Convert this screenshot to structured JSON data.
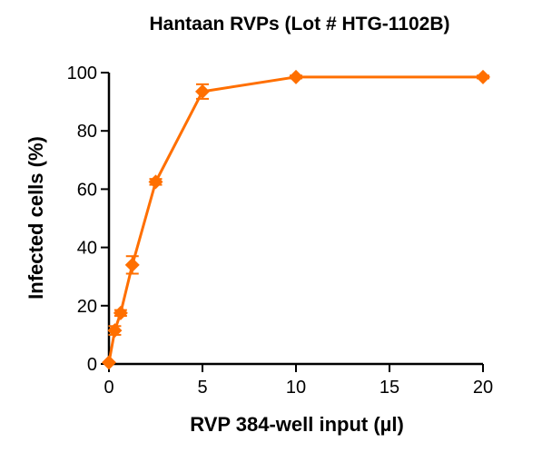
{
  "chart_data": {
    "type": "line",
    "title": "Hantaan RVPs (Lot # HTG-1102B)",
    "xlabel": "RVP 384-well input (µl)",
    "ylabel": "Infected cells (%)",
    "xlim": [
      0,
      20
    ],
    "ylim": [
      0,
      100
    ],
    "xticks": [
      0,
      5,
      10,
      15,
      20
    ],
    "yticks": [
      0,
      20,
      40,
      60,
      80,
      100
    ],
    "xtick_labels": [
      "0",
      "5",
      "10",
      "15",
      "20"
    ],
    "ytick_labels": [
      "0",
      "20",
      "40",
      "60",
      "80",
      "100"
    ],
    "grid": false,
    "series": [
      {
        "color": "#ff6f00",
        "marker": "diamond",
        "x": [
          0,
          0.3125,
          0.625,
          1.25,
          2.5,
          5,
          10,
          20
        ],
        "y": [
          0.5,
          11.5,
          17.5,
          34,
          62.5,
          93.5,
          98.5,
          98.5
        ],
        "err": [
          0,
          1.5,
          1,
          3,
          1,
          2.5,
          0.5,
          0.5
        ]
      }
    ]
  }
}
